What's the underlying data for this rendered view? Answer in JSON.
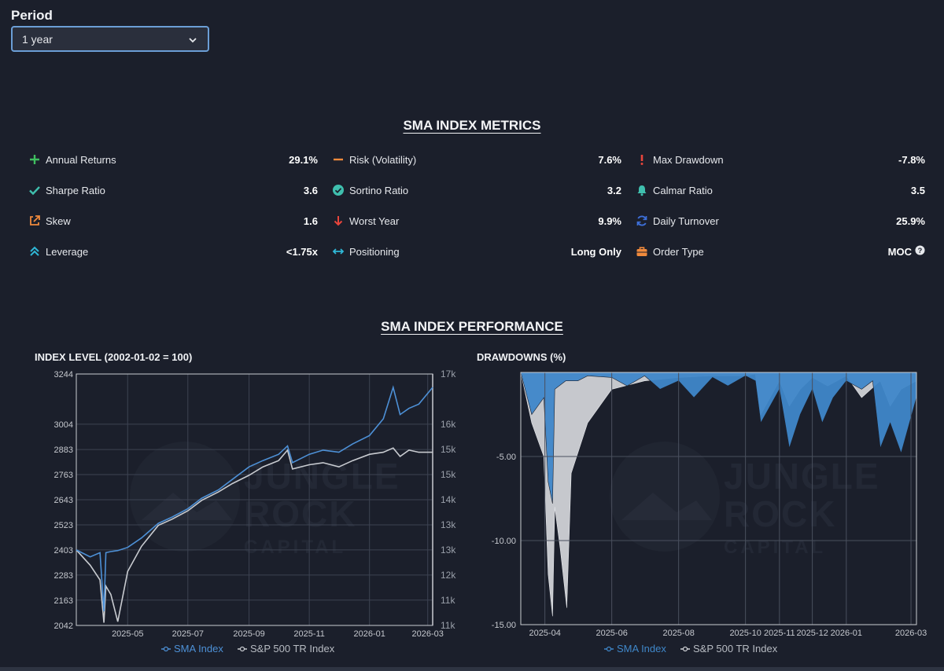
{
  "period": {
    "label": "Period",
    "selected": "1 year"
  },
  "metrics_title": "SMA INDEX METRICS",
  "metrics": [
    {
      "icon": "plus-icon",
      "label": "Annual Returns",
      "value": "29.1%",
      "color": "#3fbf5f"
    },
    {
      "icon": "minus-icon",
      "label": "Risk (Volatility)",
      "value": "7.6%",
      "color": "#f08a3c"
    },
    {
      "icon": "exclamation-icon",
      "label": "Max Drawdown",
      "value": "-7.8%",
      "color": "#e8453c"
    },
    {
      "icon": "check-icon",
      "label": "Sharpe Ratio",
      "value": "3.6",
      "color": "#3fbfae"
    },
    {
      "icon": "check-circle-icon",
      "label": "Sortino Ratio",
      "value": "3.2",
      "color": "#3fbfae"
    },
    {
      "icon": "bell-icon",
      "label": "Calmar Ratio",
      "value": "3.5",
      "color": "#3fbfae"
    },
    {
      "icon": "external-link-icon",
      "label": "Skew",
      "value": "1.6",
      "color": "#f08a3c"
    },
    {
      "icon": "arrow-down-icon",
      "label": "Worst Year",
      "value": "9.9%",
      "color": "#e8453c"
    },
    {
      "icon": "refresh-icon",
      "label": "Daily Turnover",
      "value": "25.9%",
      "color": "#3d6fd9"
    },
    {
      "icon": "double-chevron-up-icon",
      "label": "Leverage",
      "value": "<1.75x",
      "color": "#2fb7d6"
    },
    {
      "icon": "horizontal-arrows-icon",
      "label": "Positioning",
      "value": "Long Only",
      "color": "#2fb7d6"
    },
    {
      "icon": "briefcase-icon",
      "label": "Order Type",
      "value": "MOC",
      "color": "#f08a3c",
      "help": true
    }
  ],
  "performance_title": "SMA INDEX PERFORMANCE",
  "watermark": {
    "line1": "JUNGLE",
    "line2": "ROCK",
    "line3": "CAPITAL"
  },
  "chart_data": [
    {
      "type": "line",
      "title": "INDEX LEVEL (2002-01-02 = 100)",
      "x_ticks": [
        "2025-05",
        "2025-07",
        "2025-09",
        "2025-11",
        "2026-01",
        "2026-03"
      ],
      "y_ticks_left": [
        "3244",
        "3004",
        "2883",
        "2763",
        "2643",
        "2523",
        "2403",
        "2283",
        "2163",
        "2042"
      ],
      "y_ticks_right": [
        "17k",
        "16k",
        "15k",
        "15k",
        "14k",
        "13k",
        "13k",
        "12k",
        "11k",
        "11k"
      ],
      "ylim_left": [
        2042,
        3244
      ],
      "ylim_right": [
        11000,
        17000
      ],
      "xlim": [
        "2025-03-10",
        "2026-03-06"
      ],
      "grid": true,
      "legend_position": "bottom-center",
      "series": [
        {
          "name": "SMA Index",
          "color": "#4d90d6",
          "axis": "left",
          "x": [
            "2025-03-10",
            "2025-03-24",
            "2025-04-03",
            "2025-04-07",
            "2025-04-09",
            "2025-04-14",
            "2025-04-21",
            "2025-05-01",
            "2025-05-15",
            "2025-06-01",
            "2025-06-15",
            "2025-07-01",
            "2025-07-15",
            "2025-08-01",
            "2025-08-15",
            "2025-09-01",
            "2025-09-15",
            "2025-10-01",
            "2025-10-10",
            "2025-10-15",
            "2025-11-01",
            "2025-11-15",
            "2025-12-01",
            "2025-12-15",
            "2026-01-01",
            "2026-01-15",
            "2026-01-25",
            "2026-02-01",
            "2026-02-10",
            "2026-02-20",
            "2026-03-06"
          ],
          "values": [
            2403,
            2370,
            2390,
            2110,
            2390,
            2395,
            2400,
            2415,
            2460,
            2530,
            2560,
            2600,
            2650,
            2690,
            2740,
            2800,
            2830,
            2860,
            2900,
            2820,
            2860,
            2880,
            2870,
            2910,
            2950,
            3030,
            3180,
            3050,
            3080,
            3100,
            3180
          ]
        },
        {
          "name": "S&P 500 TR Index",
          "color": "#c8cbd0",
          "axis": "left",
          "x": [
            "2025-03-10",
            "2025-03-24",
            "2025-04-03",
            "2025-04-07",
            "2025-04-09",
            "2025-04-14",
            "2025-04-21",
            "2025-05-01",
            "2025-05-15",
            "2025-06-01",
            "2025-06-15",
            "2025-07-01",
            "2025-07-15",
            "2025-08-01",
            "2025-08-15",
            "2025-09-01",
            "2025-09-15",
            "2025-10-01",
            "2025-10-10",
            "2025-10-15",
            "2025-11-01",
            "2025-11-15",
            "2025-12-01",
            "2025-12-15",
            "2026-01-01",
            "2026-01-15",
            "2026-01-25",
            "2026-02-01",
            "2026-02-10",
            "2026-02-20",
            "2026-03-06"
          ],
          "values": [
            2403,
            2330,
            2260,
            2055,
            2230,
            2190,
            2060,
            2300,
            2420,
            2520,
            2550,
            2590,
            2640,
            2680,
            2720,
            2760,
            2800,
            2830,
            2880,
            2790,
            2810,
            2820,
            2800,
            2830,
            2860,
            2870,
            2890,
            2850,
            2880,
            2870,
            2870
          ]
        }
      ]
    },
    {
      "type": "area",
      "title": "DRAWDOWNS (%)",
      "x_ticks": [
        "2025-04",
        "2025-06",
        "2025-08",
        "2025-10",
        "2025-11",
        "2025-12",
        "2026-01",
        "2026-03"
      ],
      "y_ticks": [
        "-5.00",
        "-10.00",
        "-15.00"
      ],
      "ylim": [
        -15.0,
        0.0
      ],
      "xlim": [
        "2025-03-10",
        "2026-03-06"
      ],
      "grid": true,
      "legend_position": "bottom-center",
      "series": [
        {
          "name": "SMA Index",
          "color": "#3f87c9",
          "x": [
            "2025-03-10",
            "2025-03-20",
            "2025-03-31",
            "2025-04-04",
            "2025-04-08",
            "2025-04-10",
            "2025-04-20",
            "2025-05-01",
            "2025-05-10",
            "2025-06-01",
            "2025-06-15",
            "2025-07-01",
            "2025-07-15",
            "2025-08-01",
            "2025-08-15",
            "2025-09-01",
            "2025-09-15",
            "2025-10-01",
            "2025-10-10",
            "2025-10-15",
            "2025-11-01",
            "2025-11-10",
            "2025-11-20",
            "2025-12-01",
            "2025-12-10",
            "2025-12-20",
            "2026-01-01",
            "2026-01-15",
            "2026-01-25",
            "2026-02-01",
            "2026-02-10",
            "2026-02-20",
            "2026-03-06"
          ],
          "values": [
            0.0,
            -2.5,
            -1.5,
            -6.5,
            -7.8,
            -1.0,
            -0.5,
            -0.5,
            -0.2,
            -0.3,
            -0.8,
            -0.2,
            -1.0,
            -0.5,
            -1.5,
            -0.3,
            -0.8,
            -0.2,
            -0.5,
            -3.0,
            -1.0,
            -4.5,
            -2.5,
            -1.0,
            -3.0,
            -1.5,
            -0.5,
            -1.0,
            -0.5,
            -4.5,
            -3.0,
            -4.8,
            -1.5
          ]
        },
        {
          "name": "S&P 500 TR Index",
          "color": "#d0d2d6",
          "x": [
            "2025-03-10",
            "2025-03-20",
            "2025-03-31",
            "2025-04-04",
            "2025-04-08",
            "2025-04-10",
            "2025-04-15",
            "2025-04-21",
            "2025-04-25",
            "2025-05-10",
            "2025-06-01",
            "2025-07-01",
            "2025-08-01",
            "2025-09-01",
            "2025-10-01",
            "2025-10-10",
            "2025-10-15",
            "2025-11-01",
            "2025-11-10",
            "2025-11-20",
            "2025-12-01",
            "2025-12-15",
            "2026-01-01",
            "2026-01-15",
            "2026-02-01",
            "2026-02-10",
            "2026-02-20",
            "2026-03-06"
          ],
          "values": [
            0.0,
            -3.0,
            -5.0,
            -12.0,
            -14.5,
            -8.0,
            -10.5,
            -14.0,
            -6.0,
            -3.0,
            -1.0,
            -0.5,
            -0.3,
            -0.2,
            -0.2,
            -0.1,
            -2.5,
            -0.5,
            -2.0,
            -1.0,
            -0.3,
            -0.8,
            -0.2,
            -1.5,
            -0.5,
            -2.0,
            -1.0,
            -0.5
          ]
        }
      ]
    }
  ]
}
